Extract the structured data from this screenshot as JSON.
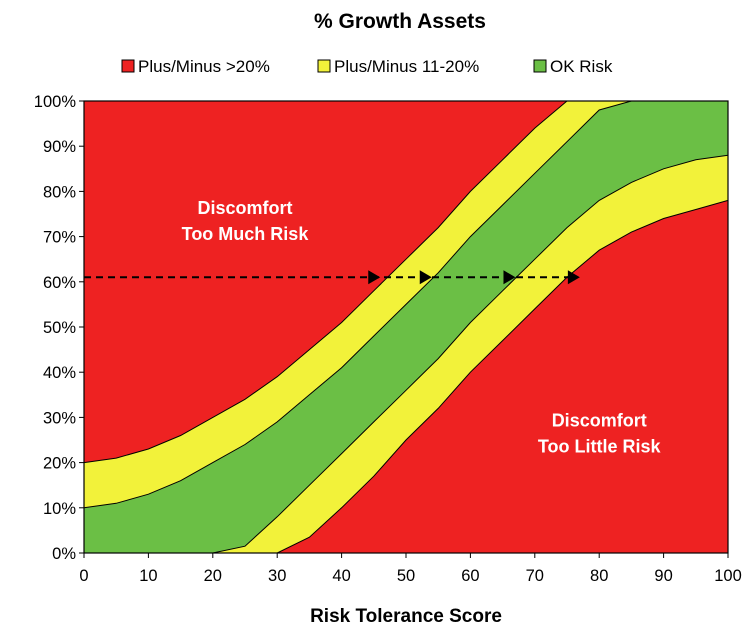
{
  "chart_data": {
    "type": "area",
    "title": "% Growth Assets",
    "xlabel": "Risk Tolerance Score",
    "ylabel": "",
    "xlim": [
      0,
      100
    ],
    "ylim": [
      0,
      100
    ],
    "x_ticks": [
      "0",
      "10",
      "20",
      "30",
      "40",
      "50",
      "60",
      "70",
      "80",
      "90",
      "100"
    ],
    "y_ticks": [
      "0%",
      "10%",
      "20%",
      "30%",
      "40%",
      "50%",
      "60%",
      "70%",
      "80%",
      "90%",
      "100%"
    ],
    "legend_position": "top",
    "colors": {
      "red": "#ee2222",
      "yellow": "#f2f23a",
      "green": "#6bbf45"
    },
    "legend": [
      {
        "label": "Plus/Minus >20%",
        "color": "#ee2222"
      },
      {
        "label": "Plus/Minus 11-20%",
        "color": "#f2f23a"
      },
      {
        "label": "OK Risk",
        "color": "#6bbf45"
      }
    ],
    "x": [
      0,
      5,
      10,
      15,
      20,
      25,
      30,
      35,
      40,
      45,
      50,
      55,
      60,
      65,
      70,
      75,
      80,
      85,
      90,
      95,
      100
    ],
    "boundaries": {
      "upper_outer": [
        20,
        21,
        23,
        26,
        30,
        34,
        39,
        45,
        51,
        58,
        65,
        72,
        80,
        87,
        94,
        100,
        100,
        100,
        100,
        100,
        100
      ],
      "upper_inner": [
        10,
        11,
        13,
        16,
        20,
        24,
        29,
        35,
        41,
        48,
        55,
        62,
        70,
        77,
        84,
        91,
        98,
        100,
        100,
        100,
        100
      ],
      "lower_inner": [
        0,
        0,
        0,
        0,
        0,
        1.5,
        8,
        15,
        22,
        29,
        36,
        43,
        51,
        58,
        65,
        72,
        78,
        82,
        85,
        87,
        88
      ],
      "lower_outer": [
        0,
        0,
        0,
        0,
        0,
        0,
        0,
        3.5,
        10,
        17,
        25,
        32,
        40,
        47,
        54,
        61,
        67,
        71,
        74,
        76,
        78
      ]
    },
    "reference_line": {
      "y": 61,
      "x_start": 0,
      "x_end": 77,
      "arrows_at_x": [
        46,
        54,
        67,
        77
      ]
    },
    "annotations": [
      {
        "lines": [
          "Discomfort",
          "Too Much Risk"
        ],
        "x": 25,
        "y": 75
      },
      {
        "lines": [
          "Discomfort",
          "Too Little Risk"
        ],
        "x": 80,
        "y": 28
      }
    ]
  }
}
